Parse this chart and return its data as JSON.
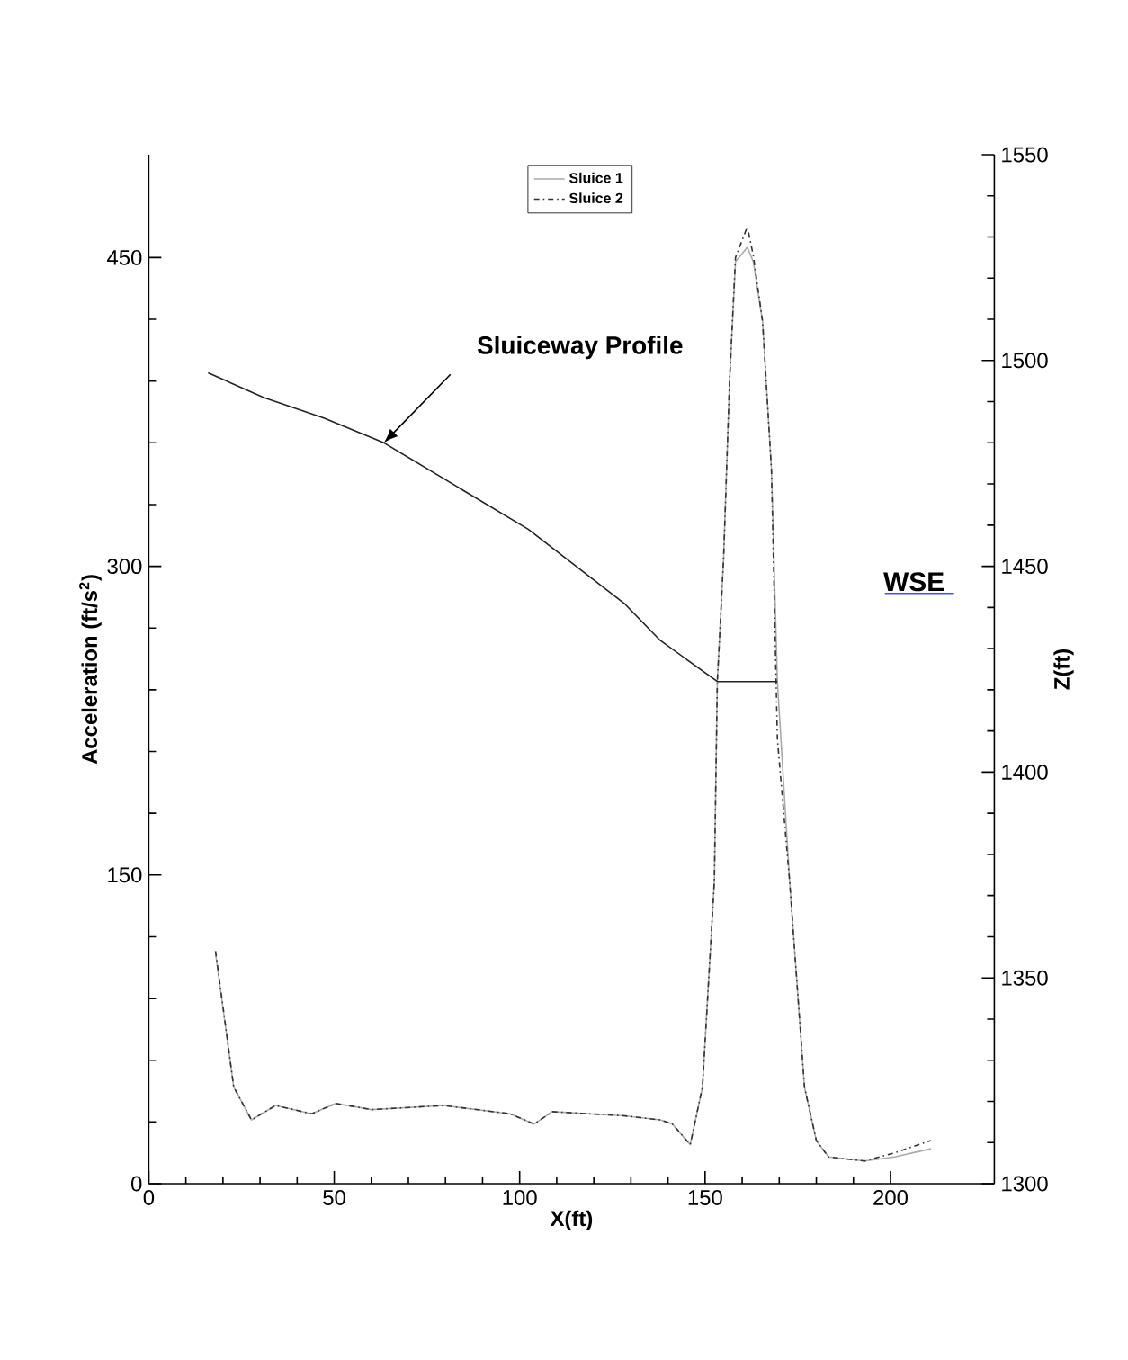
{
  "chart_data": {
    "type": "line",
    "xlabel": "X(ft)",
    "ylabel": "Acceleration (ft/s$^{2}$)",
    "y2label": "Z(ft)",
    "xlim": [
      0,
      228
    ],
    "xticks": [
      0,
      50,
      100,
      150,
      200
    ],
    "ylim": [
      0,
      500
    ],
    "yticks": [
      0,
      150,
      300,
      450
    ],
    "y2lim": [
      1300,
      1550
    ],
    "y2ticks": [
      1300,
      1350,
      1400,
      1450,
      1500,
      1550
    ],
    "legend": "top",
    "grid": false,
    "annotations": [
      {
        "text": "Sluiceway Profile",
        "x": 63.4,
        "y": 360
      },
      "WSE"
    ],
    "series": [
      {
        "name": "Sluice 1",
        "color": "#aaaaaa",
        "line_style": "solid",
        "x": [
          18,
          22.9,
          27.7,
          34.2,
          43.9,
          50.4,
          60.1,
          79.6,
          97.4,
          103.9,
          108.8,
          128.2,
          137.9,
          141.2,
          146,
          149.3,
          152.5,
          153.3,
          155,
          156.6,
          158.2,
          161.4,
          163,
          165.5,
          167.9,
          169.5,
          172.8,
          176.8,
          180,
          183.3,
          193,
          201.1,
          210.9
        ],
        "values": [
          112,
          47,
          31,
          38,
          34,
          39,
          36,
          38,
          34,
          29,
          35,
          33,
          31,
          29,
          19,
          47,
          147,
          244,
          304,
          390,
          448,
          455,
          448,
          419,
          347,
          244,
          147,
          47,
          21,
          13,
          11,
          13,
          17
        ]
      },
      {
        "name": "Sluice 2",
        "color": "#333333",
        "line_style": "dashdot",
        "x": [
          18,
          22.9,
          27.7,
          34.2,
          43.9,
          50.4,
          60.1,
          79.6,
          97.4,
          103.9,
          108.8,
          128.2,
          137.9,
          141.2,
          146,
          149.3,
          152.5,
          153.3,
          155,
          156.6,
          158.2,
          161.4,
          163,
          165.5,
          167.9,
          169.5,
          172.8,
          176.8,
          180,
          183.3,
          193,
          201.1,
          210.9
        ],
        "values": [
          113,
          47,
          31,
          38,
          34,
          39,
          36,
          38,
          34,
          29,
          35,
          33,
          31,
          29,
          19,
          47,
          147,
          244,
          304,
          390,
          450,
          465,
          451,
          419,
          347,
          216,
          147,
          47,
          21,
          13,
          11,
          15,
          21
        ]
      },
      {
        "color": "#222222",
        "line_style": "solid",
        "axis": "y2",
        "x": [
          16,
          31,
          47.2,
          63.4,
          102.3,
          128.2,
          137.9,
          153.3,
          169.5
        ],
        "values": [
          1497,
          1491,
          1486,
          1480,
          1459,
          1441,
          1432,
          1422,
          1422
        ]
      }
    ]
  }
}
